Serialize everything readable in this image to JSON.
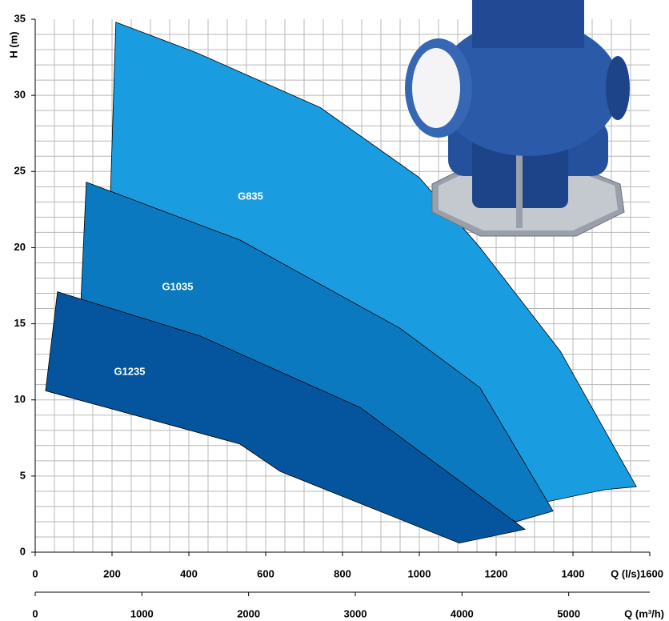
{
  "chart_data": {
    "type": "area-envelope",
    "ylabel": "H (m)",
    "xlabel": "Q (l/s)",
    "x2label": "Q (m³/h)",
    "xlim": [
      0,
      1600
    ],
    "xticks": [
      0,
      200,
      400,
      600,
      800,
      1000,
      1200,
      1400,
      1600
    ],
    "x2lim": [
      0,
      5760
    ],
    "x2ticks": [
      0,
      1000,
      2000,
      3000,
      4000,
      5000
    ],
    "ylim": [
      0,
      35
    ],
    "yticks": [
      0,
      5,
      10,
      15,
      20,
      25,
      30,
      35
    ],
    "grid": true,
    "minor_grid": {
      "x": 50,
      "y": 1
    },
    "series": [
      {
        "name": "G835",
        "color": "#1a9de0",
        "x": [
          210,
          420,
          742,
          1000,
          1158,
          1367,
          1565,
          1481,
          1330,
          900,
          600,
          196
        ],
        "values": [
          34.8,
          32.8,
          29.2,
          24.6,
          20,
          13.2,
          4.3,
          4.1,
          3.3,
          12,
          18.5,
          23.6
        ]
      },
      {
        "name": "G1035",
        "color": "#0a79c0",
        "x": [
          133,
          533,
          950,
          1158,
          1348,
          1252,
          1000,
          600,
          119
        ],
        "values": [
          24.3,
          20.5,
          14.7,
          10.8,
          2.7,
          2.0,
          5,
          10,
          16.5
        ]
      },
      {
        "name": "G1235",
        "color": "#04559e",
        "x": [
          58,
          429,
          846,
          1275,
          1104,
          638,
          533,
          27
        ],
        "values": [
          17.1,
          14.2,
          9.5,
          1.5,
          0.6,
          5.3,
          7.1,
          10.6
        ]
      }
    ]
  }
}
